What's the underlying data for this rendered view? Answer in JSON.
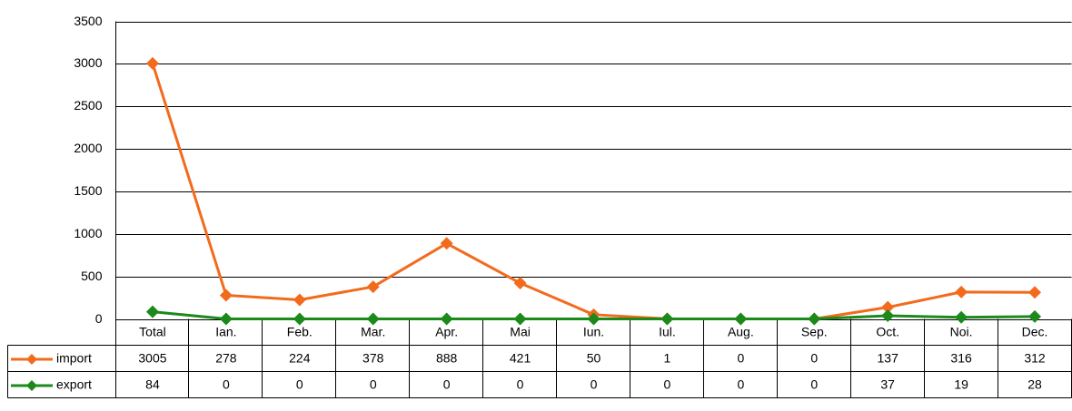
{
  "chart_data": {
    "type": "line",
    "categories": [
      "Total",
      "Ian.",
      "Feb.",
      "Mar.",
      "Apr.",
      "Mai",
      "Iun.",
      "Iul.",
      "Aug.",
      "Sep.",
      "Oct.",
      "Noi.",
      "Dec."
    ],
    "series": [
      {
        "name": "import",
        "color": "#f26b1d",
        "values": [
          3005,
          278,
          224,
          378,
          888,
          421,
          50,
          1,
          0,
          0,
          137,
          316,
          312
        ]
      },
      {
        "name": "export",
        "color": "#1b8a1b",
        "values": [
          84,
          0,
          0,
          0,
          0,
          0,
          0,
          0,
          0,
          0,
          37,
          19,
          28
        ]
      }
    ],
    "ylim": [
      0,
      3500
    ],
    "yticks": [
      0,
      500,
      1000,
      1500,
      2000,
      2500,
      3000,
      3500
    ],
    "grid": true
  }
}
